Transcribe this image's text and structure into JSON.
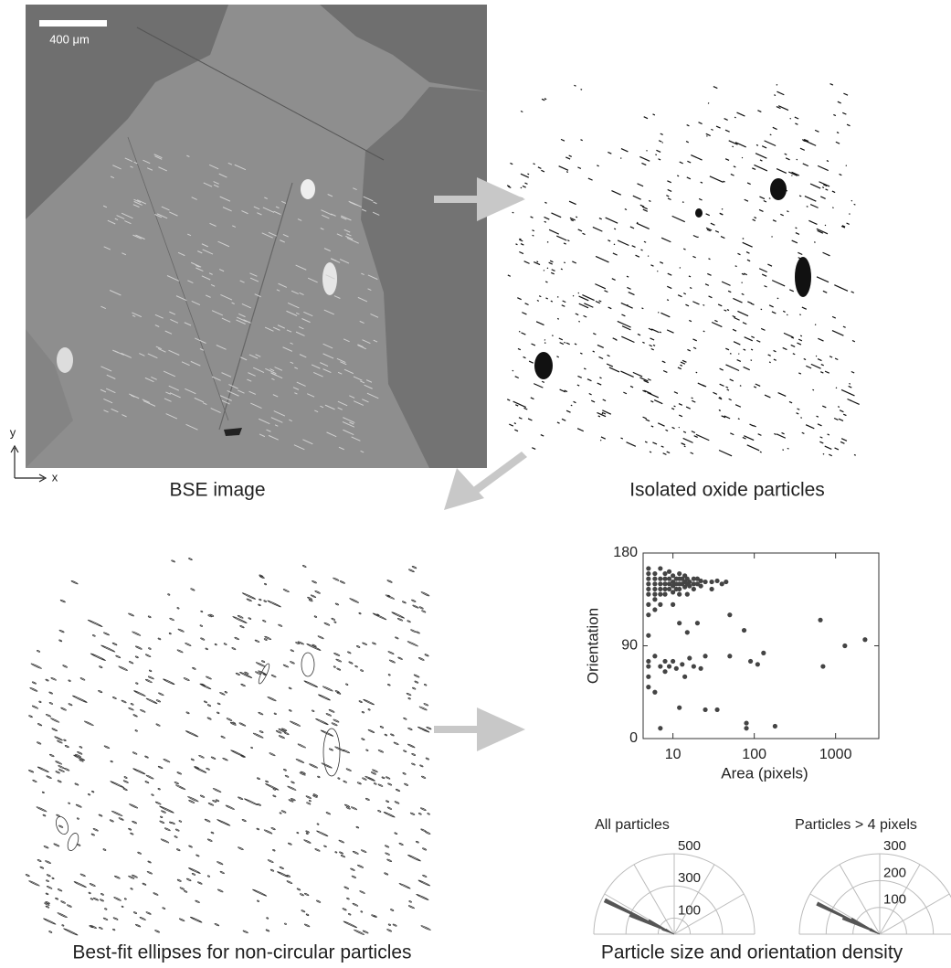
{
  "figure": {
    "scale_bar": "400 μm",
    "axis_y": "y",
    "axis_x": "x",
    "captions": [
      "BSE image",
      "Isolated oxide particles",
      "Best-fit ellipses for non-circular particles",
      "Particle size and orientation density"
    ]
  },
  "chart_data": [
    {
      "type": "scatter",
      "x_label": "Area (pixels)",
      "y_label": "Orientation",
      "x_log": true,
      "color": "#444444",
      "x": [
        5,
        5,
        5,
        5,
        5,
        5,
        5,
        5,
        5,
        5,
        5,
        5,
        5,
        6,
        6,
        6,
        6,
        6,
        6,
        6,
        6,
        6,
        7,
        7,
        7,
        7,
        7,
        7,
        7,
        7,
        8,
        8,
        8,
        8,
        8,
        8,
        8,
        9,
        9,
        9,
        9,
        9,
        10,
        10,
        10,
        10,
        10,
        10,
        11,
        11,
        11,
        11,
        12,
        12,
        12,
        12,
        12,
        12,
        12,
        13,
        13,
        13,
        14,
        14,
        14,
        14,
        15,
        15,
        15,
        15,
        16,
        16,
        16,
        18,
        18,
        18,
        18,
        20,
        20,
        20,
        22,
        22,
        22,
        25,
        25,
        25,
        30,
        30,
        35,
        40,
        45,
        35,
        50,
        50,
        75,
        80,
        80,
        90,
        110,
        130,
        180,
        650,
        700,
        1300,
        2300
      ],
      "values": [
        160,
        155,
        150,
        145,
        140,
        165,
        130,
        120,
        100,
        75,
        70,
        60,
        50,
        160,
        155,
        150,
        145,
        140,
        135,
        125,
        80,
        45,
        165,
        155,
        150,
        145,
        140,
        130,
        70,
        10,
        160,
        155,
        150,
        145,
        140,
        75,
        65,
        162,
        155,
        150,
        145,
        70,
        158,
        152,
        148,
        142,
        130,
        75,
        155,
        150,
        145,
        68,
        160,
        155,
        150,
        145,
        140,
        112,
        30,
        155,
        150,
        72,
        158,
        152,
        147,
        60,
        155,
        150,
        140,
        103,
        152,
        148,
        78,
        155,
        150,
        145,
        70,
        155,
        150,
        112,
        153,
        148,
        68,
        152,
        80,
        28,
        152,
        145,
        153,
        150,
        152,
        28,
        120,
        80,
        105,
        15,
        10,
        75,
        72,
        83,
        12,
        115,
        70,
        90,
        96
      ],
      "xlim": [
        4.3,
        3400
      ],
      "ylim": [
        0,
        180
      ],
      "xticks": [
        10,
        100,
        1000
      ],
      "yticks": [
        0,
        90,
        180
      ]
    },
    {
      "type": "polar",
      "title": "All particles",
      "color": "#555555",
      "theta": [
        148,
        151,
        154,
        157,
        160
      ],
      "values": [
        60,
        180,
        480,
        300,
        80
      ],
      "rlim": [
        0,
        500
      ],
      "rticks": [
        100,
        300,
        500
      ],
      "grid": true
    },
    {
      "type": "polar",
      "title": "Particles > 4 pixels",
      "color": "#555555",
      "theta": [
        148,
        151,
        154,
        157,
        160
      ],
      "values": [
        40,
        120,
        260,
        150,
        40
      ],
      "rlim": [
        0,
        300
      ],
      "rticks": [
        100,
        200,
        300
      ],
      "grid": true
    }
  ]
}
